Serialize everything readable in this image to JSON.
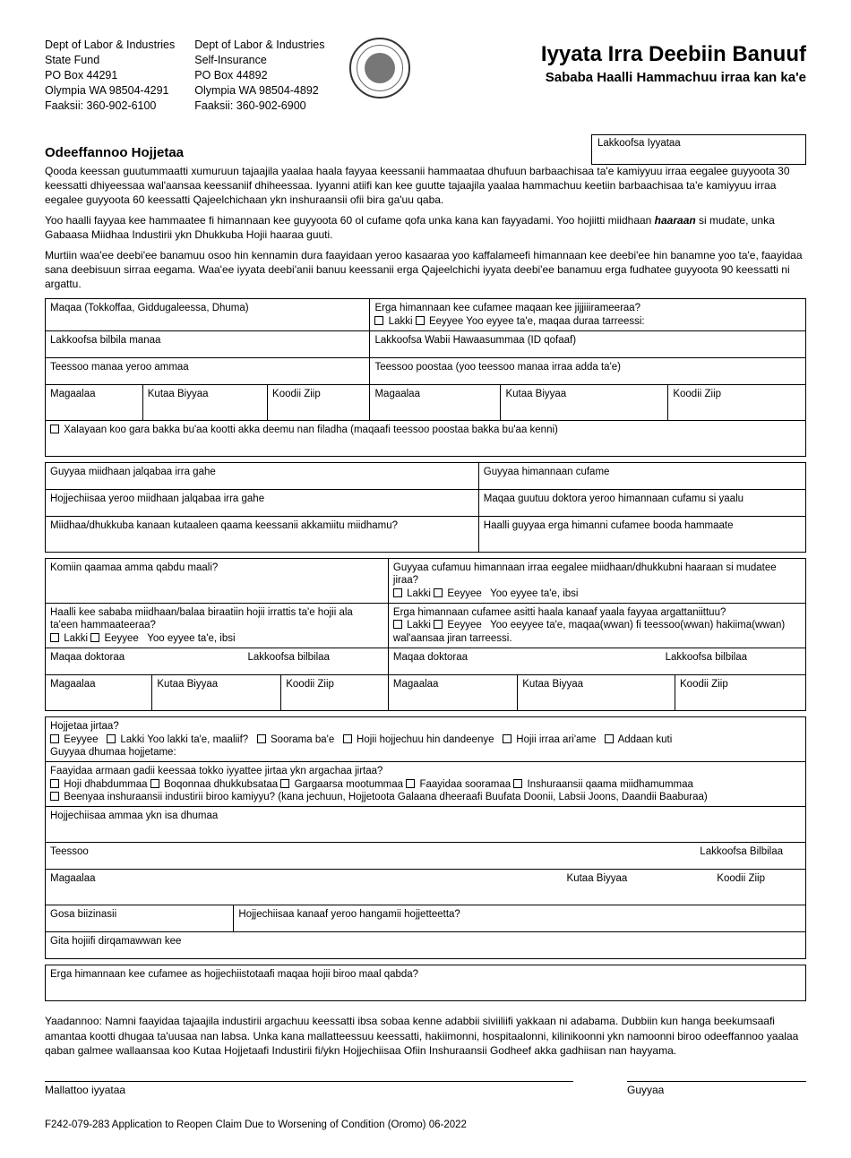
{
  "header": {
    "addr1": {
      "l1": "Dept of Labor & Industries",
      "l2": "State Fund",
      "l3": "PO Box 44291",
      "l4": "Olympia WA 98504-4291",
      "l5": "Faaksii: 360-902-6100"
    },
    "addr2": {
      "l1": "Dept of Labor & Industries",
      "l2": "Self-Insurance",
      "l3": "PO Box 44892",
      "l4": "Olympia WA 98504-4892",
      "l5": "Faaksii: 360-902-6900"
    },
    "title_main": "Iyyata Irra Deebiin Banuuf",
    "title_sub": "Sababa Haalli Hammachuu irraa kan ka'e",
    "claim_label": "Lakkoofsa Iyyataa"
  },
  "worker": {
    "section_title": "Odeeffannoo Hojjetaa",
    "p1": "Qooda keessan guutummaatti xumuruun tajaajila yaalaa haala fayyaa keessanii hammaataa dhufuun barbaachisaa ta'e kamiyyuu irraa eegalee guyyoota 30 keessatti dhiyeessaa wal'aansaa keessaniif dhiheessaa. Iyyanni atiifi kan kee guutte tajaajila yaalaa hammachuu keetiin barbaachisaa ta'e kamiyyuu irraa eegalee guyyoota 60 keessatti Qajeelchichaan ykn inshuraansii ofii bira ga'uu qaba.",
    "p2a": "Yoo haalli fayyaa kee hammaatee fi himannaan kee guyyoota 60 ol cufame qofa unka kana kan fayyadami. Yoo hojiitti miidhaan ",
    "p2b": "haaraan",
    "p2c": " si mudate, unka Gabaasa Miidhaa Industirii ykn Dhukkuba Hojii haaraa guuti.",
    "p3": "Murtiin waa'ee deebi'ee banamuu osoo hin kennamin dura faayidaan yeroo kasaaraa yoo kaffalameefi himannaan kee deebi'ee hin banamne yoo ta'e, faayidaa sana deebisuun sirraa eegama. Waa'ee iyyata deebi'anii banuu keessanii erga Qajeelchichi iyyata deebi'ee banamuu erga fudhatee guyyoota 90 keessatti ni argattu."
  },
  "fields": {
    "name": "Maqaa (Tokkoffaa, Giddugaleessa, Dhuma)",
    "name_change_q": "Erga himannaan kee cufamee maqaan kee jijjiiirameeraa?",
    "no": "Lakki",
    "yes": "Eeyyee",
    "name_change_tail": "Yoo eyyee ta'e, maqaa duraa tarreessi:",
    "home_phone": "Lakkoofsa bilbila manaa",
    "ssn": "Lakkoofsa Wabii Hawaasummaa (ID qofaaf)",
    "home_addr": "Teessoo manaa yeroo ammaa",
    "mail_addr": "Teessoo poostaa (yoo teessoo manaa irraa adda ta'e)",
    "city": "Magaalaa",
    "state": "Kutaa Biyyaa",
    "zip": "Koodii Ziip",
    "profit_place": "Xalayaan koo gara bakka bu'aa kootti akka deemu nan filadha (maqaafi teessoo poostaa bakka bu'aa kenni)",
    "date_injury": "Guyyaa miidhaan jalqabaa irra gahe",
    "date_closed": "Guyyaa himannaan cufame",
    "employer_injury": "Hojjechiisaa yeroo miidhaan jalqabaa irra gahe",
    "doctor_closed": "Maqaa guutuu doktora yeroo himannaan cufamu si yaalu",
    "body_part": "Miidhaa/dhukkuba kanaan kutaaleen qaama keessanii akkamiitu miidhamu?",
    "worsened": "Haalli guyyaa erga himanni cufamee booda hammaate",
    "current_complaint": "Komiin qaamaa amma qabdu maali?",
    "new_injury_q": "Guyyaa cufamuu himannaan irraa eegalee miidhaan/dhukkubni haaraan si mudatee jiraa?",
    "if_yes_explain": "Yoo eyyee ta'e, ibsi",
    "off_work_q": "Haalli kee sababa miidhaan/balaa biraatiin hojii irrattis ta'e hojii ala ta'een hammaateeraa?",
    "treatment_q": "Erga himannaan cufamee asitti haala kanaaf yaala fayyaa argattaniittuu?",
    "treatment_tail": "Yoo eeyyee ta'e, maqaa(wwan) fi teessoo(wwan) hakiima(wwan) wal'aansaa jiran tarreessi.",
    "doctor_name": "Maqaa doktoraa",
    "phone": "Lakkoofsa bilbilaa",
    "working_q": "Hojjetaa jirtaa?",
    "working_no_why": "Lakki Yoo lakki ta'e, maaliif?",
    "opt_retired": "Soorama ba'e",
    "opt_unable": "Hojii hojjechuu hin dandeenye",
    "opt_fired": "Hojii irraa ari'ame",
    "opt_other": "Addaan kuti",
    "last_day": "Guyyaa dhumaa hojjetame:",
    "benefits_q": "Faayidaa armaan gadii keessaa tokko iyyattee jirtaa ykn argachaa jirtaa?",
    "ben_unemp": "Hoji dhabdummaa",
    "ben_sick": "Boqonnaa dhukkubsataa",
    "ben_public": "Gargaarsa mootummaa",
    "ben_retire": "Faayidaa sooramaa",
    "ben_bodily": "Inshuraansii qaama miidhamummaa",
    "ben_other_q": "Beenyaa inshuraansii industirii biroo kamiyyu? (kana jechuun, Hojjetoota Galaana dheeraafi Buufata Doonii, Labsii Joons, Daandii Baaburaa)",
    "curr_employer": "Hojjechiisaa ammaa ykn isa dhumaa",
    "addr": "Teessoo",
    "phone_cap": "Lakkoofsa Bilbilaa",
    "biz_type": "Gosa biizinasii",
    "how_long": "Hojjechiisaa kanaaf yeroo hangamii hojjetteetta?",
    "job_title": "Gita hojiifi dirqamawwan kee",
    "other_employers": "Erga himannaan kee cufamee as hojjechiistotaafi maqaa hojii biroo maal qabda?"
  },
  "notice": "Yaadannoo: Namni faayidaa tajaajila industirii argachuu keessatti ibsa sobaa kenne adabbii siviiliifi yakkaan ni adabama. Dubbiin kun hanga beekumsaafi amantaa kootti dhugaa ta'uusaa nan labsa. Unka kana mallatteessuu keessatti, hakiimonni, hospitaalonni, kilinikoonni ykn namoonni biroo odeeffannoo yaalaa qaban galmee wallaansaa koo Kutaa Hojjetaafi Industirii fi/ykn Hojjechiisaa Ofiin Inshuraansii Godheef akka gadhiisan nan hayyama.",
  "sig": {
    "applicant": "Mallattoo iyyataa",
    "date": "Guyyaa"
  },
  "footer": "F242-079-283 Application to Reopen Claim Due to Worsening of Condition  (Oromo)   06-2022"
}
